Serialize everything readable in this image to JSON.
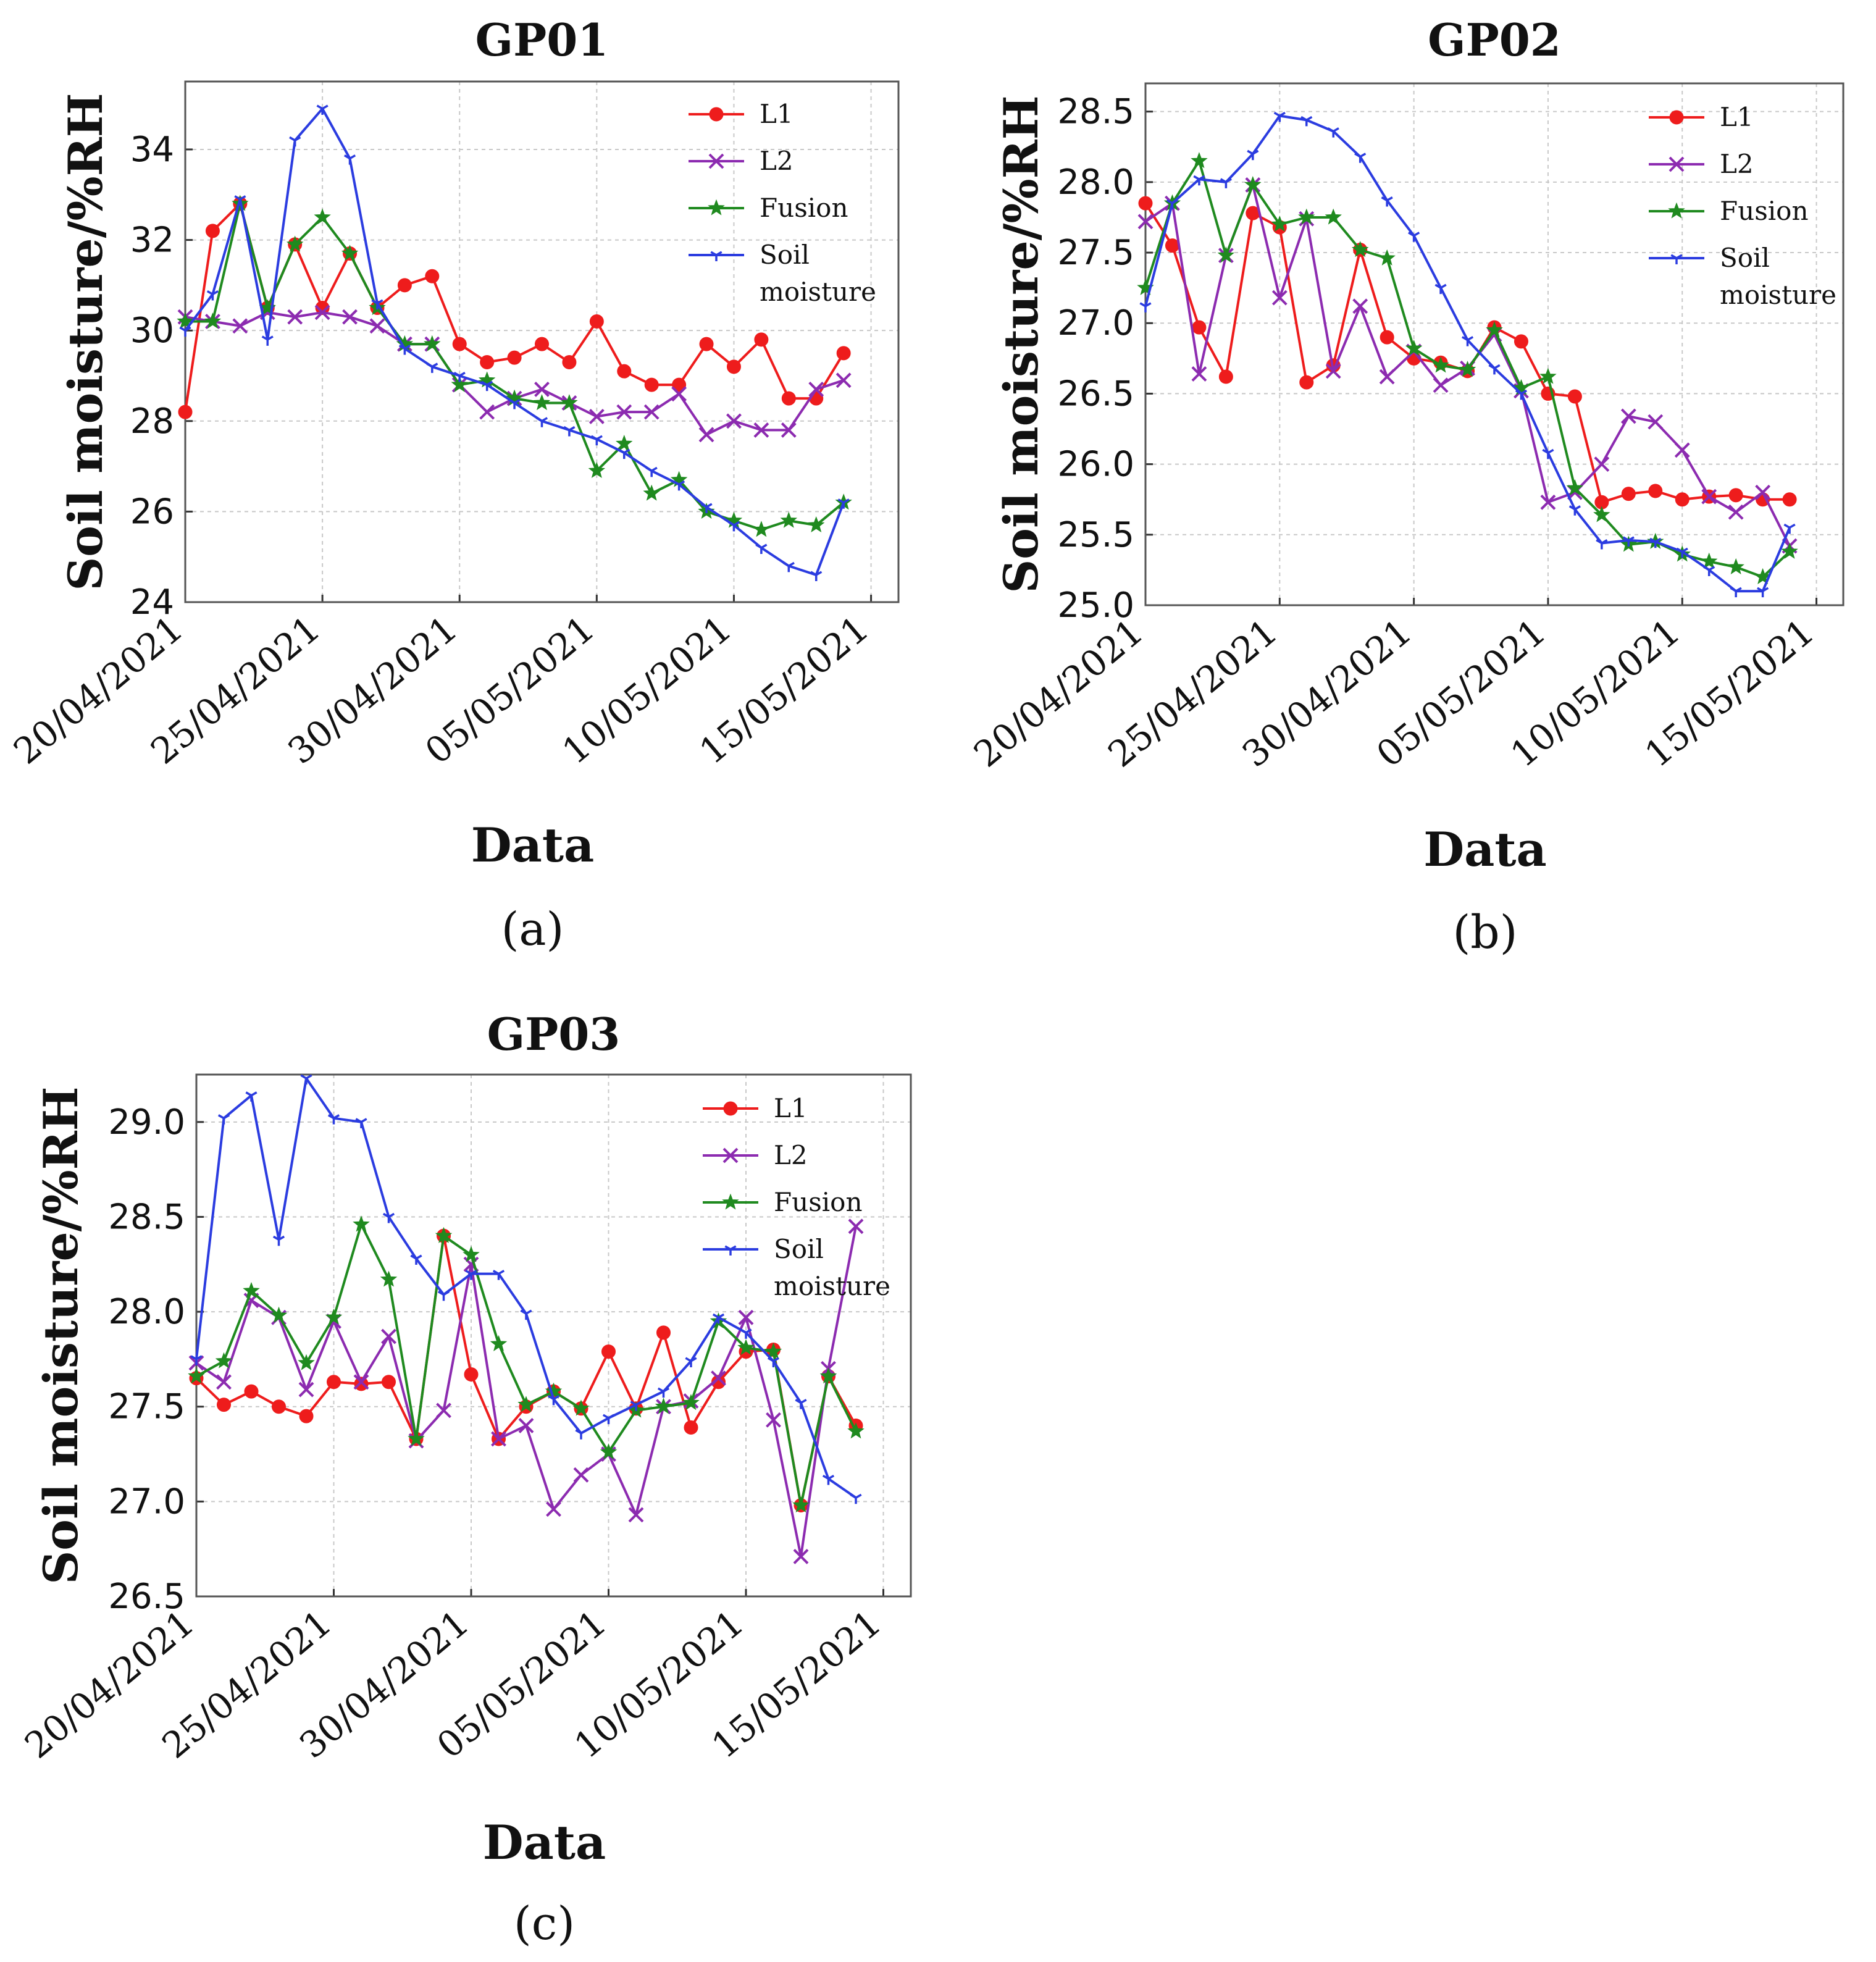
{
  "colors": {
    "L1": "#ee1c1c",
    "L2": "#8c2bb0",
    "Fusion": "#1f8a1f",
    "Soil moisture": "#2b3ce0"
  },
  "chart_data": [
    {
      "type": "line",
      "title": "GP01",
      "caption": "(a)",
      "xlabel": "Data",
      "ylabel": "Soil moisture/%RH",
      "ylim": [
        24,
        35.5
      ],
      "yticks": [
        "24",
        "26",
        "28",
        "30",
        "32",
        "34"
      ],
      "ytick_values": [
        24,
        26,
        28,
        30,
        32,
        34
      ],
      "x_range": [
        0,
        26
      ],
      "xtick_positions": [
        0,
        5,
        10,
        15,
        20,
        25
      ],
      "xtick_labels": [
        "20/04/2021",
        "25/04/2021",
        "30/04/2021",
        "05/05/2021",
        "10/05/2021",
        "15/05/2021"
      ],
      "legend": [
        "L1",
        "L2",
        "Fusion",
        "Soil",
        "moisture"
      ],
      "series": [
        {
          "name": "L1",
          "marker": "circle",
          "values": [
            28.2,
            32.2,
            32.8,
            30.5,
            31.9,
            30.5,
            31.7,
            30.5,
            31.0,
            31.2,
            29.7,
            29.3,
            29.4,
            29.7,
            29.3,
            30.2,
            29.1,
            28.8,
            28.8,
            29.7,
            29.2,
            29.8,
            28.5,
            28.5,
            29.5
          ]
        },
        {
          "name": "L2",
          "marker": "x",
          "values": [
            30.3,
            30.2,
            30.1,
            30.4,
            30.3,
            30.4,
            30.3,
            30.1,
            29.7,
            29.7,
            28.8,
            28.2,
            28.5,
            28.7,
            28.4,
            28.1,
            28.2,
            28.2,
            28.6,
            27.7,
            28.0,
            27.8,
            27.8,
            28.7,
            28.9
          ]
        },
        {
          "name": "Fusion",
          "marker": "star",
          "values": [
            30.2,
            30.2,
            32.8,
            30.5,
            31.9,
            32.5,
            31.7,
            30.5,
            29.7,
            29.7,
            28.8,
            28.9,
            28.5,
            28.4,
            28.4,
            26.9,
            27.5,
            26.4,
            26.7,
            26.0,
            25.8,
            25.6,
            25.8,
            25.7,
            26.2
          ]
        },
        {
          "name": "Soil moisture",
          "marker": "tri",
          "values": [
            30.0,
            30.8,
            32.9,
            29.8,
            34.2,
            34.9,
            33.8,
            30.6,
            29.6,
            29.2,
            29.0,
            28.8,
            28.4,
            28.0,
            27.8,
            27.6,
            27.3,
            26.9,
            26.6,
            26.1,
            25.7,
            25.2,
            24.8,
            24.6,
            26.2
          ]
        }
      ]
    },
    {
      "type": "line",
      "title": "GP02",
      "caption": "(b)",
      "xlabel": "Data",
      "ylabel": "Soil moisture/%RH",
      "ylim": [
        25.0,
        28.7
      ],
      "yticks": [
        "25.0",
        "25.5",
        "26.0",
        "26.5",
        "27.0",
        "27.5",
        "28.0",
        "28.5"
      ],
      "ytick_values": [
        25.0,
        25.5,
        26.0,
        26.5,
        27.0,
        27.5,
        28.0,
        28.5
      ],
      "x_range": [
        0,
        26
      ],
      "xtick_positions": [
        0,
        5,
        10,
        15,
        20,
        25
      ],
      "xtick_labels": [
        "20/04/2021",
        "25/04/2021",
        "30/04/2021",
        "05/05/2021",
        "10/05/2021",
        "15/05/2021"
      ],
      "legend": [
        "L1",
        "L2",
        "Fusion",
        "Soil",
        "moisture"
      ],
      "series": [
        {
          "name": "L1",
          "marker": "circle",
          "values": [
            27.85,
            27.55,
            26.97,
            26.62,
            27.78,
            27.68,
            26.58,
            26.7,
            27.52,
            26.9,
            26.75,
            26.72,
            26.66,
            26.97,
            26.87,
            26.5,
            26.48,
            25.73,
            25.79,
            25.81,
            25.75,
            25.77,
            25.78,
            25.75,
            25.75
          ]
        },
        {
          "name": "L2",
          "marker": "x",
          "values": [
            27.72,
            27.85,
            26.64,
            27.48,
            27.98,
            27.18,
            27.74,
            26.66,
            27.12,
            26.62,
            26.8,
            26.56,
            26.68,
            26.92,
            26.52,
            25.73,
            25.8,
            26.0,
            26.34,
            26.3,
            26.1,
            25.77,
            25.66,
            25.8,
            25.42
          ]
        },
        {
          "name": "Fusion",
          "marker": "star",
          "values": [
            27.25,
            27.85,
            28.15,
            27.48,
            27.98,
            27.7,
            27.75,
            27.75,
            27.52,
            27.46,
            26.82,
            26.7,
            26.67,
            26.95,
            26.54,
            26.62,
            25.83,
            25.64,
            25.43,
            25.45,
            25.36,
            25.31,
            25.27,
            25.2,
            25.38
          ]
        },
        {
          "name": "Soil moisture",
          "marker": "tri",
          "values": [
            27.12,
            27.85,
            28.02,
            28.0,
            28.2,
            28.47,
            28.44,
            28.36,
            28.18,
            27.87,
            27.62,
            27.25,
            26.88,
            26.68,
            26.5,
            26.08,
            25.68,
            25.44,
            25.46,
            25.45,
            25.38,
            25.25,
            25.1,
            25.1,
            25.55
          ]
        }
      ]
    },
    {
      "type": "line",
      "title": "GP03",
      "caption": "(c)",
      "xlabel": "Data",
      "ylabel": "Soil moisture/%RH",
      "ylim": [
        26.5,
        29.25
      ],
      "yticks": [
        "26.5",
        "27.0",
        "27.5",
        "28.0",
        "28.5",
        "29.0"
      ],
      "ytick_values": [
        26.5,
        27.0,
        27.5,
        28.0,
        28.5,
        29.0
      ],
      "x_range": [
        0,
        26
      ],
      "xtick_positions": [
        0,
        5,
        10,
        15,
        20,
        25
      ],
      "xtick_labels": [
        "20/04/2021",
        "25/04/2021",
        "30/04/2021",
        "05/05/2021",
        "10/05/2021",
        "15/05/2021"
      ],
      "legend": [
        "L1",
        "L2",
        "Fusion",
        "Soil",
        "moisture"
      ],
      "series": [
        {
          "name": "L1",
          "marker": "circle",
          "values": [
            27.65,
            27.51,
            27.58,
            27.5,
            27.45,
            27.63,
            27.62,
            27.63,
            27.33,
            28.4,
            27.67,
            27.33,
            27.5,
            27.58,
            27.49,
            27.79,
            27.49,
            27.89,
            27.39,
            27.63,
            27.79,
            27.8,
            26.98,
            27.66,
            27.4
          ]
        },
        {
          "name": "L2",
          "marker": "x",
          "values": [
            27.73,
            27.63,
            28.06,
            27.97,
            27.59,
            27.95,
            27.63,
            27.87,
            27.32,
            27.48,
            28.25,
            27.33,
            27.4,
            26.96,
            27.14,
            27.25,
            26.93,
            27.5,
            27.53,
            27.65,
            27.97,
            27.43,
            26.71,
            27.7,
            28.45
          ]
        },
        {
          "name": "Fusion",
          "marker": "star",
          "values": [
            27.66,
            27.74,
            28.11,
            27.98,
            27.73,
            27.97,
            28.46,
            28.17,
            27.33,
            28.4,
            28.3,
            27.83,
            27.51,
            27.58,
            27.49,
            27.26,
            27.48,
            27.5,
            27.52,
            27.95,
            27.81,
            27.79,
            26.98,
            27.66,
            27.37
          ]
        },
        {
          "name": "Soil moisture",
          "marker": "tri",
          "values": [
            27.75,
            29.02,
            29.14,
            28.38,
            29.23,
            29.02,
            29.0,
            28.5,
            28.28,
            28.09,
            28.2,
            28.2,
            27.99,
            27.54,
            27.36,
            27.44,
            27.51,
            27.58,
            27.74,
            27.97,
            27.89,
            27.74,
            27.52,
            27.12,
            27.02
          ]
        }
      ]
    }
  ]
}
